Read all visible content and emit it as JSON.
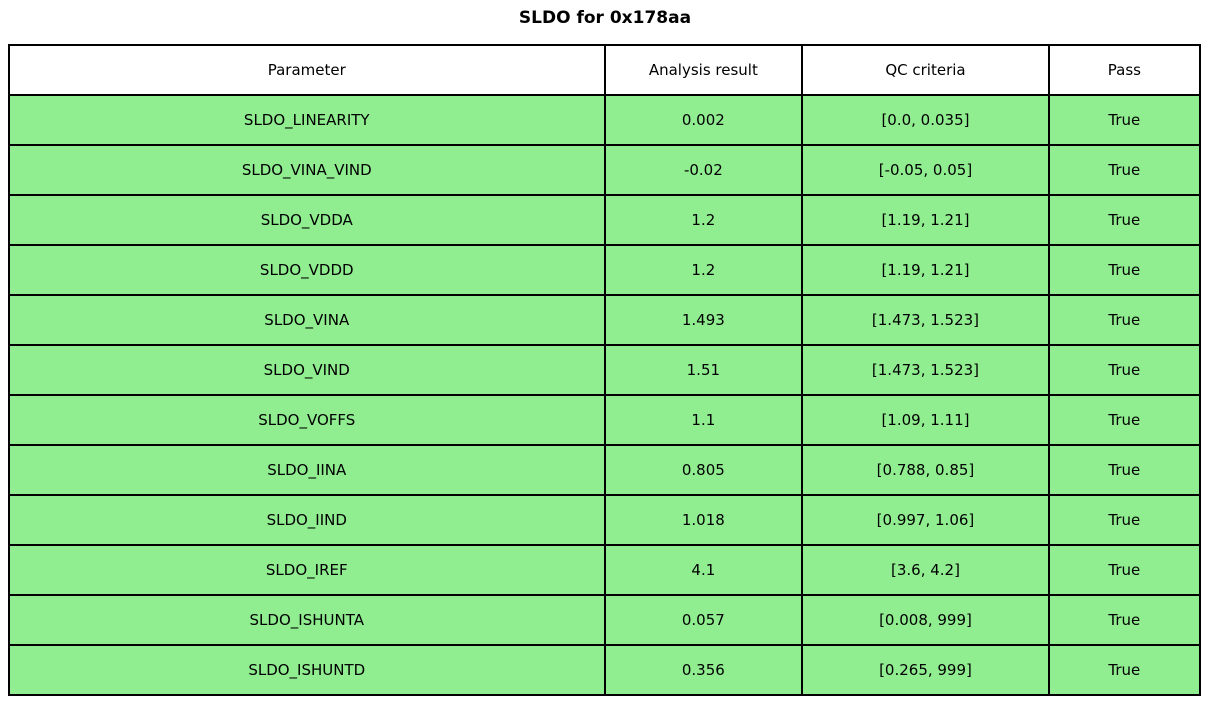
{
  "title": "SLDO for 0x178aa",
  "colors": {
    "row_pass_bg": "#90EE90",
    "header_bg": "#FFFFFF",
    "border": "#000000",
    "text": "#000000"
  },
  "table": {
    "columns": [
      "Parameter",
      "Analysis result",
      "QC criteria",
      "Pass"
    ],
    "rows": [
      {
        "parameter": "SLDO_LINEARITY",
        "result": "0.002",
        "criteria": "[0.0, 0.035]",
        "pass": "True"
      },
      {
        "parameter": "SLDO_VINA_VIND",
        "result": "-0.02",
        "criteria": "[-0.05, 0.05]",
        "pass": "True"
      },
      {
        "parameter": "SLDO_VDDA",
        "result": "1.2",
        "criteria": "[1.19, 1.21]",
        "pass": "True"
      },
      {
        "parameter": "SLDO_VDDD",
        "result": "1.2",
        "criteria": "[1.19, 1.21]",
        "pass": "True"
      },
      {
        "parameter": "SLDO_VINA",
        "result": "1.493",
        "criteria": "[1.473, 1.523]",
        "pass": "True"
      },
      {
        "parameter": "SLDO_VIND",
        "result": "1.51",
        "criteria": "[1.473, 1.523]",
        "pass": "True"
      },
      {
        "parameter": "SLDO_VOFFS",
        "result": "1.1",
        "criteria": "[1.09, 1.11]",
        "pass": "True"
      },
      {
        "parameter": "SLDO_IINA",
        "result": "0.805",
        "criteria": "[0.788, 0.85]",
        "pass": "True"
      },
      {
        "parameter": "SLDO_IIND",
        "result": "1.018",
        "criteria": "[0.997, 1.06]",
        "pass": "True"
      },
      {
        "parameter": "SLDO_IREF",
        "result": "4.1",
        "criteria": "[3.6, 4.2]",
        "pass": "True"
      },
      {
        "parameter": "SLDO_ISHUNTA",
        "result": "0.057",
        "criteria": "[0.008, 999]",
        "pass": "True"
      },
      {
        "parameter": "SLDO_ISHUNTD",
        "result": "0.356",
        "criteria": "[0.265, 999]",
        "pass": "True"
      }
    ]
  },
  "chart_data": {
    "type": "table",
    "title": "SLDO for 0x178aa",
    "columns": [
      "Parameter",
      "Analysis result",
      "QC criteria",
      "Pass"
    ],
    "rows": [
      [
        "SLDO_LINEARITY",
        0.002,
        "[0.0, 0.035]",
        true
      ],
      [
        "SLDO_VINA_VIND",
        -0.02,
        "[-0.05, 0.05]",
        true
      ],
      [
        "SLDO_VDDA",
        1.2,
        "[1.19, 1.21]",
        true
      ],
      [
        "SLDO_VDDD",
        1.2,
        "[1.19, 1.21]",
        true
      ],
      [
        "SLDO_VINA",
        1.493,
        "[1.473, 1.523]",
        true
      ],
      [
        "SLDO_VIND",
        1.51,
        "[1.473, 1.523]",
        true
      ],
      [
        "SLDO_VOFFS",
        1.1,
        "[1.09, 1.11]",
        true
      ],
      [
        "SLDO_IINA",
        0.805,
        "[0.788, 0.85]",
        true
      ],
      [
        "SLDO_IIND",
        1.018,
        "[0.997, 1.06]",
        true
      ],
      [
        "SLDO_IREF",
        4.1,
        "[3.6, 4.2]",
        true
      ],
      [
        "SLDO_ISHUNTA",
        0.057,
        "[0.008, 999]",
        true
      ],
      [
        "SLDO_ISHUNTD",
        0.356,
        "[0.265, 999]",
        true
      ]
    ],
    "cell_fill_color": "#90EE90",
    "header_fill_color": "#FFFFFF",
    "layout": {
      "title_position": "top-center",
      "grid": true
    }
  }
}
